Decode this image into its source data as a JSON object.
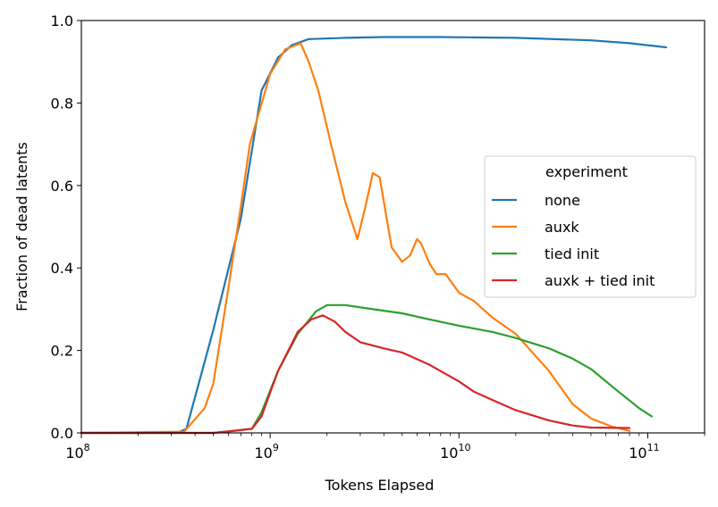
{
  "chart_data": {
    "type": "line",
    "title": "",
    "xlabel": "Tokens Elapsed",
    "ylabel": "Fraction of dead latents",
    "xscale": "log",
    "xlim": [
      100000000.0,
      200000000000.0
    ],
    "ylim": [
      0,
      1.0
    ],
    "grid": false,
    "legend": {
      "title": "experiment",
      "placement": "center-right"
    },
    "x_ticks": [
      {
        "value": 100000000.0,
        "base": "10",
        "exp": "8"
      },
      {
        "value": 1000000000.0,
        "base": "10",
        "exp": "9"
      },
      {
        "value": 10000000000.0,
        "base": "10",
        "exp": "10"
      },
      {
        "value": 100000000000.0,
        "base": "10",
        "exp": "11"
      }
    ],
    "y_ticks": [
      {
        "value": 0.0,
        "label": "0.0"
      },
      {
        "value": 0.2,
        "label": "0.2"
      },
      {
        "value": 0.4,
        "label": "0.4"
      },
      {
        "value": 0.6,
        "label": "0.6"
      },
      {
        "value": 0.8,
        "label": "0.8"
      },
      {
        "value": 1.0,
        "label": "1.0"
      }
    ],
    "series": [
      {
        "name": "none",
        "color": "#1f77b4",
        "points": [
          [
            100000000.0,
            0
          ],
          [
            320000000.0,
            0
          ],
          [
            360000000.0,
            0.01
          ],
          [
            500000000.0,
            0.25
          ],
          [
            700000000.0,
            0.52
          ],
          [
            900000000.0,
            0.83
          ],
          [
            1100000000.0,
            0.91
          ],
          [
            1300000000.0,
            0.94
          ],
          [
            1600000000.0,
            0.955
          ],
          [
            2500000000.0,
            0.958
          ],
          [
            4000000000.0,
            0.96
          ],
          [
            8000000000.0,
            0.96
          ],
          [
            20000000000.0,
            0.958
          ],
          [
            50000000000.0,
            0.952
          ],
          [
            80000000000.0,
            0.945
          ],
          [
            125000000000.0,
            0.935
          ]
        ]
      },
      {
        "name": "auxk",
        "color": "#ff7f0e",
        "points": [
          [
            100000000.0,
            0
          ],
          [
            350000000.0,
            0.003
          ],
          [
            450000000.0,
            0.06
          ],
          [
            500000000.0,
            0.12
          ],
          [
            600000000.0,
            0.35
          ],
          [
            700000000.0,
            0.55
          ],
          [
            780000000.0,
            0.7
          ],
          [
            1000000000.0,
            0.87
          ],
          [
            1200000000.0,
            0.93
          ],
          [
            1450000000.0,
            0.945
          ],
          [
            1600000000.0,
            0.9
          ],
          [
            1800000000.0,
            0.83
          ],
          [
            2100000000.0,
            0.7
          ],
          [
            2500000000.0,
            0.56
          ],
          [
            2900000000.0,
            0.47
          ],
          [
            3200000000.0,
            0.55
          ],
          [
            3500000000.0,
            0.63
          ],
          [
            3800000000.0,
            0.62
          ],
          [
            4400000000.0,
            0.45
          ],
          [
            5000000000.0,
            0.415
          ],
          [
            5500000000.0,
            0.43
          ],
          [
            6000000000.0,
            0.47
          ],
          [
            6300000000.0,
            0.46
          ],
          [
            7000000000.0,
            0.41
          ],
          [
            7600000000.0,
            0.385
          ],
          [
            8500000000.0,
            0.385
          ],
          [
            10000000000.0,
            0.34
          ],
          [
            12000000000.0,
            0.32
          ],
          [
            15000000000.0,
            0.28
          ],
          [
            20000000000.0,
            0.24
          ],
          [
            30000000000.0,
            0.15
          ],
          [
            40000000000.0,
            0.07
          ],
          [
            50000000000.0,
            0.035
          ],
          [
            65000000000.0,
            0.015
          ],
          [
            80000000000.0,
            0.005
          ]
        ]
      },
      {
        "name": "tied init",
        "color": "#2ca02c",
        "points": [
          [
            100000000.0,
            0
          ],
          [
            500000000.0,
            0
          ],
          [
            650000000.0,
            0.005
          ],
          [
            800000000.0,
            0.01
          ],
          [
            900000000.0,
            0.05
          ],
          [
            1100000000.0,
            0.15
          ],
          [
            1400000000.0,
            0.24
          ],
          [
            1750000000.0,
            0.295
          ],
          [
            2000000000.0,
            0.31
          ],
          [
            2500000000.0,
            0.31
          ],
          [
            3500000000.0,
            0.3
          ],
          [
            5000000000.0,
            0.29
          ],
          [
            7000000000.0,
            0.275
          ],
          [
            10000000000.0,
            0.26
          ],
          [
            15000000000.0,
            0.245
          ],
          [
            20000000000.0,
            0.23
          ],
          [
            30000000000.0,
            0.205
          ],
          [
            40000000000.0,
            0.18
          ],
          [
            50000000000.0,
            0.155
          ],
          [
            70000000000.0,
            0.1
          ],
          [
            90000000000.0,
            0.06
          ],
          [
            105000000000.0,
            0.04
          ]
        ]
      },
      {
        "name": "auxk + tied init",
        "color": "#d62728",
        "points": [
          [
            100000000.0,
            0
          ],
          [
            500000000.0,
            0
          ],
          [
            800000000.0,
            0.01
          ],
          [
            900000000.0,
            0.04
          ],
          [
            1100000000.0,
            0.15
          ],
          [
            1400000000.0,
            0.245
          ],
          [
            1650000000.0,
            0.275
          ],
          [
            1900000000.0,
            0.285
          ],
          [
            2200000000.0,
            0.27
          ],
          [
            2500000000.0,
            0.245
          ],
          [
            3000000000.0,
            0.22
          ],
          [
            4000000000.0,
            0.205
          ],
          [
            5000000000.0,
            0.195
          ],
          [
            7000000000.0,
            0.165
          ],
          [
            10000000000.0,
            0.125
          ],
          [
            12000000000.0,
            0.1
          ],
          [
            15000000000.0,
            0.08
          ],
          [
            20000000000.0,
            0.055
          ],
          [
            30000000000.0,
            0.03
          ],
          [
            40000000000.0,
            0.018
          ],
          [
            50000000000.0,
            0.013
          ],
          [
            80000000000.0,
            0.012
          ]
        ]
      }
    ]
  }
}
